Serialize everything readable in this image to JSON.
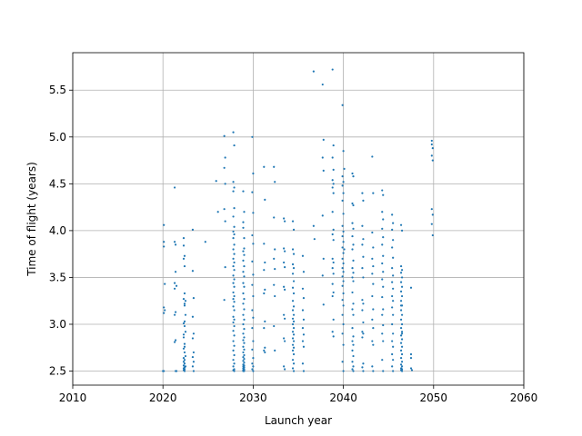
{
  "chart_data": {
    "type": "scatter",
    "title": "",
    "xlabel": "Launch year",
    "ylabel": "Time of flight (years)",
    "xlim": [
      2010,
      2060
    ],
    "ylim": [
      2.35,
      5.9
    ],
    "xticks": [
      2010,
      2020,
      2030,
      2040,
      2050,
      2060
    ],
    "yticks": [
      2.5,
      3.0,
      3.5,
      4.0,
      4.5,
      5.0,
      5.5
    ],
    "ytick_labels": [
      "2.5",
      "3.0",
      "3.5",
      "4.0",
      "4.5",
      "5.0",
      "5.5"
    ],
    "grid": true,
    "marker_color": "#1f77b4",
    "series": [
      {
        "x": [
          2020.1,
          2020.1,
          2020.1,
          2020.2,
          2020.1,
          2020.2,
          2020.1,
          2020.0,
          2020.1,
          2021.3,
          2021.3,
          2021.4,
          2021.4,
          2021.3,
          2021.5,
          2021.3,
          2021.4,
          2021.3,
          2021.4,
          2021.3,
          2021.5,
          2021.4,
          2022.3,
          2022.3,
          2022.4,
          2022.3,
          2022.4,
          2022.4,
          2022.3,
          2022.5,
          2022.4,
          2022.4,
          2022.3,
          2022.4,
          2022.5,
          2022.3,
          2022.4,
          2022.3,
          2022.4,
          2022.5,
          2022.3,
          2022.4,
          2022.4,
          2022.3,
          2022.5,
          2022.4,
          2022.3,
          2022.4,
          2022.3,
          2022.4,
          2022.4,
          2022.5,
          2022.3,
          2022.4,
          2022.3,
          2023.3,
          2023.3,
          2023.4,
          2023.3,
          2023.4,
          2023.3,
          2023.4,
          2023.3,
          2023.4,
          2023.3,
          2023.4,
          2024.7,
          2025.9,
          2026.1,
          2026.8,
          2026.9,
          2026.8,
          2026.9,
          2026.8,
          2026.9,
          2026.9,
          2026.8,
          2027.8,
          2027.9,
          2027.8,
          2027.9,
          2027.8,
          2027.9,
          2027.8,
          2027.9,
          2027.8,
          2027.9,
          2027.8,
          2027.9,
          2027.8,
          2027.9,
          2027.8,
          2027.9,
          2027.8,
          2027.9,
          2027.8,
          2027.9,
          2027.8,
          2027.9,
          2027.8,
          2027.9,
          2027.8,
          2027.9,
          2027.8,
          2027.9,
          2027.8,
          2027.9,
          2027.8,
          2027.9,
          2027.8,
          2027.9,
          2027.8,
          2027.9,
          2027.8,
          2027.9,
          2027.8,
          2027.9,
          2027.8,
          2027.9,
          2027.8,
          2027.9,
          2028.9,
          2029.0,
          2028.9,
          2029.0,
          2028.9,
          2029.0,
          2028.9,
          2029.0,
          2028.9,
          2029.0,
          2028.9,
          2029.0,
          2028.9,
          2029.0,
          2028.9,
          2029.0,
          2028.9,
          2029.0,
          2028.9,
          2029.0,
          2028.9,
          2029.0,
          2028.9,
          2029.0,
          2028.9,
          2029.0,
          2028.9,
          2029.0,
          2028.9,
          2029.0,
          2028.9,
          2029.0,
          2028.9,
          2029.0,
          2028.9,
          2029.0,
          2028.9,
          2029.0,
          2028.9,
          2029.0,
          2028.9,
          2029.0,
          2028.9,
          2029.0,
          2029.9,
          2030.0,
          2029.9,
          2030.0,
          2029.9,
          2030.0,
          2029.9,
          2030.0,
          2029.9,
          2030.0,
          2029.9,
          2030.0,
          2029.9,
          2030.0,
          2029.9,
          2030.0,
          2029.9,
          2030.0,
          2029.9,
          2030.0,
          2031.2,
          2031.3,
          2031.2,
          2031.3,
          2031.2,
          2031.3,
          2031.2,
          2031.3,
          2031.2,
          2031.3,
          2031.2,
          2031.3,
          2032.3,
          2032.4,
          2032.3,
          2032.4,
          2032.3,
          2032.4,
          2032.3,
          2032.4,
          2032.3,
          2032.4,
          2033.4,
          2033.5,
          2033.4,
          2033.5,
          2033.4,
          2033.5,
          2033.4,
          2033.5,
          2033.4,
          2033.5,
          2033.4,
          2033.5,
          2033.4,
          2033.5,
          2034.4,
          2034.5,
          2034.4,
          2034.5,
          2034.4,
          2034.5,
          2034.4,
          2034.5,
          2034.4,
          2034.5,
          2034.4,
          2034.5,
          2034.4,
          2034.5,
          2034.4,
          2034.5,
          2034.4,
          2034.5,
          2034.4,
          2034.5,
          2034.4,
          2034.5,
          2034.4,
          2034.5,
          2034.4,
          2034.5,
          2034.4,
          2034.5,
          2034.4,
          2034.5,
          2035.5,
          2035.6,
          2035.5,
          2035.6,
          2035.5,
          2035.6,
          2035.5,
          2035.6,
          2035.5,
          2035.6,
          2035.5,
          2035.6,
          2036.7,
          2036.7,
          2036.8,
          2037.7,
          2037.8,
          2037.7,
          2037.8,
          2037.7,
          2037.8,
          2037.7,
          2037.8,
          2038.8,
          2038.9,
          2038.8,
          2038.9,
          2038.8,
          2038.9,
          2038.8,
          2038.9,
          2038.8,
          2038.9,
          2038.8,
          2038.9,
          2038.8,
          2038.9,
          2038.8,
          2038.9,
          2038.8,
          2038.9,
          2038.8,
          2038.9,
          2038.8,
          2038.9,
          2039.9,
          2040.0,
          2039.9,
          2040.0,
          2039.9,
          2040.0,
          2039.9,
          2040.0,
          2039.9,
          2040.0,
          2039.9,
          2040.0,
          2039.9,
          2040.0,
          2039.9,
          2040.0,
          2039.9,
          2040.0,
          2039.9,
          2040.0,
          2039.9,
          2040.0,
          2039.9,
          2040.0,
          2039.9,
          2040.0,
          2039.9,
          2040.0,
          2039.9,
          2040.0,
          2040.1,
          2040.1,
          2041.0,
          2041.1,
          2041.0,
          2041.1,
          2041.0,
          2041.1,
          2041.0,
          2041.1,
          2041.0,
          2041.1,
          2041.0,
          2041.1,
          2041.0,
          2041.1,
          2041.0,
          2041.1,
          2041.0,
          2041.1,
          2041.0,
          2041.1,
          2041.0,
          2041.1,
          2041.0,
          2041.1,
          2041.0,
          2041.1,
          2041.0,
          2041.1,
          2042.1,
          2042.2,
          2042.1,
          2042.2,
          2042.1,
          2042.2,
          2042.1,
          2042.2,
          2042.1,
          2042.2,
          2042.1,
          2042.2,
          2042.1,
          2042.2,
          2042.1,
          2042.2,
          2042.1,
          2042.2,
          2043.2,
          2043.3,
          2043.2,
          2043.3,
          2043.2,
          2043.3,
          2043.2,
          2043.3,
          2043.2,
          2043.3,
          2043.2,
          2043.3,
          2043.2,
          2043.3,
          2043.2,
          2043.3,
          2044.3,
          2044.4,
          2044.3,
          2044.4,
          2044.3,
          2044.4,
          2044.3,
          2044.4,
          2044.3,
          2044.4,
          2044.3,
          2044.4,
          2044.3,
          2044.4,
          2044.3,
          2044.4,
          2044.3,
          2044.4,
          2044.3,
          2044.4,
          2045.4,
          2045.5,
          2045.4,
          2045.5,
          2045.4,
          2045.5,
          2045.4,
          2045.5,
          2045.4,
          2045.5,
          2045.4,
          2045.5,
          2045.4,
          2045.5,
          2045.4,
          2045.5,
          2045.4,
          2045.5,
          2045.4,
          2045.5,
          2045.4,
          2045.5,
          2046.4,
          2046.5,
          2046.4,
          2046.5,
          2046.4,
          2046.5,
          2046.4,
          2046.5,
          2046.4,
          2046.5,
          2046.4,
          2046.5,
          2046.4,
          2046.5,
          2046.4,
          2046.5,
          2046.4,
          2046.5,
          2046.4,
          2046.5,
          2046.4,
          2046.5,
          2046.4,
          2046.5,
          2046.4,
          2046.5,
          2046.4,
          2046.5,
          2046.4,
          2046.5,
          2046.4,
          2046.5,
          2046.4,
          2046.5,
          2047.5,
          2047.5,
          2047.5,
          2047.5,
          2047.6,
          2049.8,
          2049.8,
          2049.9,
          2049.8,
          2049.9,
          2049.8,
          2049.9,
          2049.8,
          2049.9
        ],
        "y": [
          4.06,
          3.88,
          3.83,
          3.43,
          3.18,
          3.15,
          3.12,
          2.5,
          2.5,
          4.46,
          3.88,
          3.85,
          3.56,
          3.44,
          3.41,
          3.38,
          3.13,
          3.1,
          2.83,
          2.81,
          2.5,
          2.5,
          3.92,
          3.84,
          3.73,
          3.7,
          3.62,
          3.33,
          3.27,
          3.25,
          3.22,
          3.03,
          3.01,
          2.98,
          2.92,
          2.89,
          2.79,
          2.74,
          2.7,
          2.66,
          2.64,
          2.62,
          2.58,
          2.56,
          2.55,
          2.54,
          2.53,
          2.52,
          2.51,
          2.5,
          3.2,
          3.1,
          2.86,
          2.76,
          2.6,
          4.01,
          3.57,
          3.28,
          3.08,
          2.9,
          2.85,
          2.7,
          2.65,
          2.6,
          2.55,
          2.5,
          3.88,
          4.53,
          4.2,
          5.01,
          4.78,
          4.67,
          4.5,
          4.23,
          4.1,
          3.61,
          3.26,
          5.05,
          4.91,
          4.52,
          4.46,
          4.42,
          4.24,
          4.15,
          4.04,
          3.99,
          3.96,
          3.92,
          3.85,
          3.8,
          3.75,
          3.7,
          3.66,
          3.62,
          3.58,
          3.52,
          3.48,
          3.44,
          3.4,
          3.34,
          3.3,
          3.27,
          3.24,
          3.19,
          3.15,
          3.08,
          3.05,
          3.02,
          2.98,
          2.93,
          2.88,
          2.82,
          2.77,
          2.72,
          2.67,
          2.62,
          2.58,
          2.55,
          2.52,
          2.51,
          2.5,
          4.42,
          4.2,
          4.03,
          3.81,
          3.78,
          3.74,
          3.68,
          3.62,
          3.56,
          3.51,
          3.44,
          3.4,
          3.33,
          3.27,
          3.22,
          3.16,
          3.1,
          3.05,
          3.0,
          2.95,
          2.9,
          2.86,
          2.83,
          2.8,
          2.76,
          2.73,
          2.7,
          2.67,
          2.65,
          2.63,
          2.61,
          2.59,
          2.57,
          2.56,
          2.55,
          2.54,
          2.53,
          2.52,
          2.51,
          2.51,
          2.5,
          2.5,
          4.09,
          3.92,
          5.0,
          4.61,
          4.41,
          4.19,
          3.95,
          3.86,
          3.67,
          3.53,
          3.42,
          3.3,
          3.15,
          3.07,
          2.96,
          2.82,
          2.73,
          2.64,
          2.58,
          2.55,
          2.52,
          2.5,
          4.68,
          4.33,
          3.86,
          3.66,
          3.58,
          3.37,
          3.33,
          3.03,
          2.96,
          2.75,
          2.72,
          2.7,
          4.68,
          4.52,
          4.14,
          3.8,
          3.7,
          3.59,
          3.42,
          3.3,
          2.98,
          2.72,
          4.13,
          4.1,
          3.81,
          3.78,
          3.66,
          3.61,
          3.4,
          3.37,
          3.1,
          3.06,
          2.85,
          2.82,
          2.55,
          2.52,
          4.1,
          4.01,
          3.8,
          3.75,
          3.64,
          3.6,
          3.54,
          3.46,
          3.39,
          3.33,
          3.25,
          3.19,
          3.15,
          3.1,
          3.06,
          3.03,
          3.0,
          2.96,
          2.92,
          2.89,
          2.85,
          2.82,
          2.78,
          2.75,
          2.72,
          2.68,
          2.62,
          2.58,
          2.53,
          2.5,
          3.73,
          3.56,
          3.38,
          3.28,
          3.15,
          3.05,
          2.96,
          2.89,
          2.82,
          2.76,
          2.58,
          2.5,
          5.7,
          4.05,
          3.91,
          5.56,
          4.97,
          4.78,
          4.64,
          4.16,
          3.7,
          3.52,
          3.21,
          5.72,
          4.91,
          4.78,
          4.65,
          4.54,
          4.5,
          4.46,
          4.4,
          4.2,
          4.01,
          3.96,
          3.9,
          3.7,
          3.66,
          3.6,
          3.54,
          3.43,
          3.34,
          3.3,
          3.05,
          2.92,
          2.87,
          5.34,
          4.85,
          4.58,
          4.52,
          4.48,
          4.4,
          4.32,
          4.18,
          4.05,
          3.99,
          3.94,
          3.88,
          3.82,
          3.76,
          3.7,
          3.65,
          3.6,
          3.56,
          3.51,
          3.46,
          3.41,
          3.33,
          3.26,
          3.2,
          3.1,
          3.0,
          2.9,
          2.78,
          2.6,
          2.5,
          4.66,
          3.8,
          4.61,
          4.58,
          4.29,
          4.27,
          4.08,
          4.02,
          3.94,
          3.85,
          3.8,
          3.68,
          3.6,
          3.55,
          3.5,
          3.46,
          3.34,
          3.22,
          3.16,
          3.1,
          2.96,
          2.87,
          2.82,
          2.78,
          2.72,
          2.66,
          2.6,
          2.55,
          2.52,
          2.5,
          4.4,
          4.32,
          4.05,
          3.91,
          3.85,
          3.72,
          3.6,
          3.5,
          3.26,
          3.22,
          3.15,
          3.02,
          2.92,
          2.9,
          2.86,
          2.58,
          2.54,
          2.5,
          4.79,
          4.4,
          3.98,
          3.82,
          3.7,
          3.62,
          3.54,
          3.43,
          3.3,
          3.16,
          3.05,
          2.96,
          2.82,
          2.78,
          2.55,
          2.5,
          4.43,
          4.38,
          4.2,
          4.12,
          4.02,
          3.93,
          3.85,
          3.73,
          3.65,
          3.56,
          3.48,
          3.4,
          3.29,
          3.16,
          3.1,
          2.99,
          2.9,
          2.82,
          2.62,
          2.5,
          4.17,
          4.08,
          4.01,
          3.9,
          3.82,
          3.71,
          3.6,
          3.52,
          3.45,
          3.38,
          3.3,
          3.25,
          3.18,
          3.1,
          3.0,
          2.9,
          2.82,
          2.76,
          2.68,
          2.62,
          2.55,
          2.5,
          4.06,
          4.0,
          3.62,
          3.58,
          3.55,
          3.5,
          3.45,
          3.4,
          3.35,
          3.3,
          3.25,
          3.2,
          3.15,
          3.1,
          3.05,
          3.0,
          2.96,
          2.92,
          2.88,
          2.84,
          2.8,
          2.76,
          2.72,
          2.68,
          2.64,
          2.6,
          2.57,
          2.55,
          2.53,
          2.52,
          2.51,
          2.5,
          3.2,
          2.9,
          3.39,
          2.68,
          2.64,
          2.53,
          2.51,
          4.96,
          4.92,
          4.88,
          4.8,
          4.75,
          4.23,
          4.17,
          4.07,
          3.95
        ]
      }
    ]
  }
}
